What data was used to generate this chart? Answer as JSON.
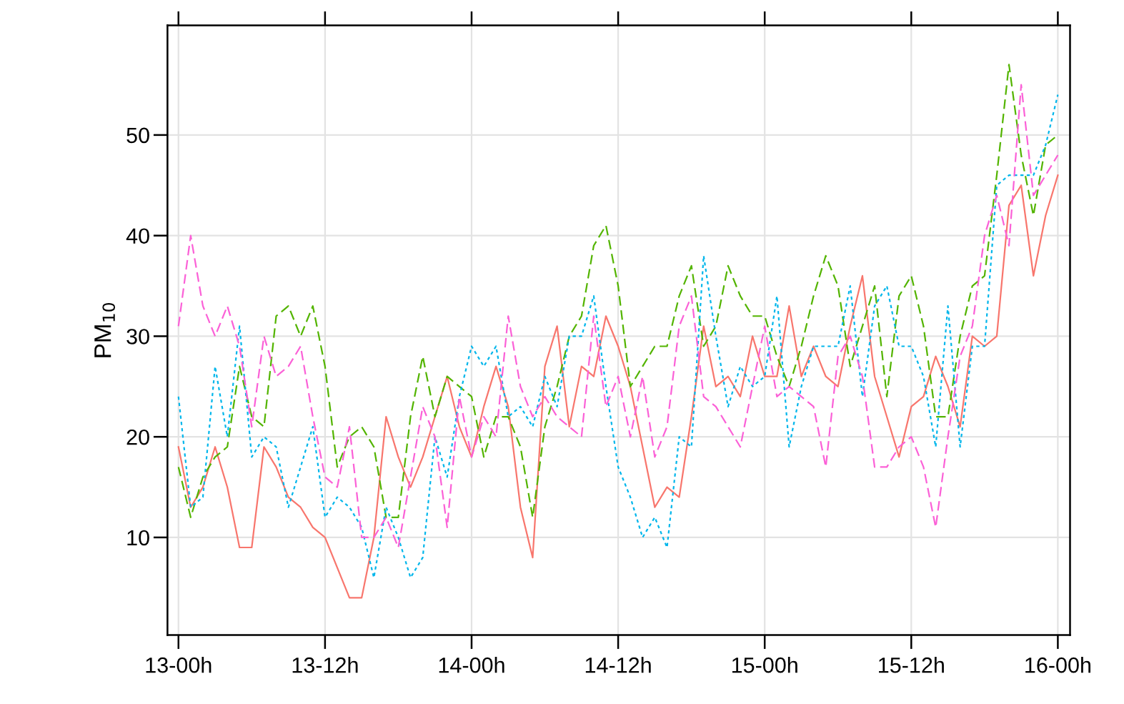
{
  "chart_data": {
    "type": "line",
    "ylabel": "PM$_{10}$",
    "categories": [
      "13-00h",
      null,
      null,
      null,
      null,
      null,
      null,
      null,
      null,
      null,
      null,
      null,
      "13-12h",
      null,
      null,
      null,
      null,
      null,
      null,
      null,
      null,
      null,
      null,
      null,
      "14-00h",
      null,
      null,
      null,
      null,
      null,
      null,
      null,
      null,
      null,
      null,
      null,
      "14-12h",
      null,
      null,
      null,
      null,
      null,
      null,
      null,
      null,
      null,
      null,
      null,
      "15-00h",
      null,
      null,
      null,
      null,
      null,
      null,
      null,
      null,
      null,
      null,
      null,
      "15-12h",
      null,
      null,
      null,
      null,
      null,
      null,
      null,
      null,
      null,
      null,
      null,
      "16-00h"
    ],
    "series": [
      {
        "color": "#f8766d",
        "line_style": "solid",
        "values": [
          19,
          13,
          15,
          19,
          15,
          9,
          9,
          19,
          17,
          14,
          13,
          11,
          10,
          7,
          4,
          4,
          10,
          22,
          18,
          15,
          18,
          22,
          26,
          21,
          18,
          23,
          27,
          23,
          13,
          8,
          27,
          31,
          21,
          27,
          26,
          32,
          29,
          25,
          19,
          13,
          15,
          14,
          22,
          31,
          25,
          26,
          24,
          30,
          26,
          26,
          33,
          26,
          29,
          26,
          25,
          31,
          36,
          26,
          22,
          18,
          23,
          24,
          28,
          25,
          21,
          30,
          29,
          30,
          43,
          45,
          36,
          42,
          46
        ]
      },
      {
        "color": "#53b400",
        "line_style": "dashed",
        "values": [
          17,
          12,
          16,
          18,
          19,
          27,
          22,
          21,
          32,
          33,
          30,
          33,
          27,
          17,
          20,
          21,
          19,
          12,
          12,
          22,
          28,
          22,
          26,
          25,
          24,
          18,
          22,
          22,
          19,
          12,
          21,
          25,
          30,
          32,
          39,
          41,
          35,
          25,
          27,
          29,
          29,
          34,
          37,
          29,
          31,
          37,
          34,
          32,
          32,
          28,
          25,
          29,
          34,
          38,
          35,
          27,
          31,
          35,
          24,
          34,
          36,
          31,
          22,
          22,
          30,
          35,
          36,
          46,
          57,
          48,
          42,
          49,
          50
        ]
      },
      {
        "color": "#00b6eb",
        "line_style": "dotted",
        "values": [
          24,
          13,
          14,
          27,
          20,
          31,
          18,
          20,
          19,
          13,
          17,
          21,
          12,
          14,
          13,
          11,
          6,
          13,
          10,
          6,
          8,
          20,
          16,
          24,
          29,
          27,
          29,
          22,
          23,
          21,
          26,
          23,
          30,
          30,
          34,
          25,
          17,
          14,
          10,
          12,
          9,
          20,
          19,
          38,
          30,
          23,
          27,
          25,
          26,
          34,
          19,
          25,
          29,
          29,
          29,
          35,
          24,
          33,
          35,
          29,
          29,
          26,
          19,
          33,
          19,
          29,
          29,
          45,
          46,
          46,
          46,
          49,
          54
        ]
      },
      {
        "color": "#fb61d7",
        "line_style": "dashed",
        "values": [
          31,
          40,
          33,
          30,
          33,
          29,
          21,
          30,
          26,
          27,
          29,
          22,
          16,
          15,
          21,
          10,
          10,
          12,
          9,
          16,
          23,
          20,
          11,
          24,
          18,
          22,
          20,
          32,
          25,
          22,
          24,
          22,
          21,
          20,
          32,
          23,
          26,
          20,
          26,
          18,
          21,
          31,
          34,
          24,
          23,
          21,
          19,
          25,
          31,
          24,
          25,
          24,
          23,
          17,
          28,
          30,
          26,
          17,
          17,
          19,
          20,
          17,
          11,
          20,
          28,
          31,
          40,
          44,
          39,
          55,
          44,
          46,
          48
        ]
      }
    ],
    "ylim": [
      0.3,
      60.9
    ],
    "yticks": [
      10,
      20,
      30,
      40,
      50
    ],
    "grid": true,
    "legend": false
  }
}
